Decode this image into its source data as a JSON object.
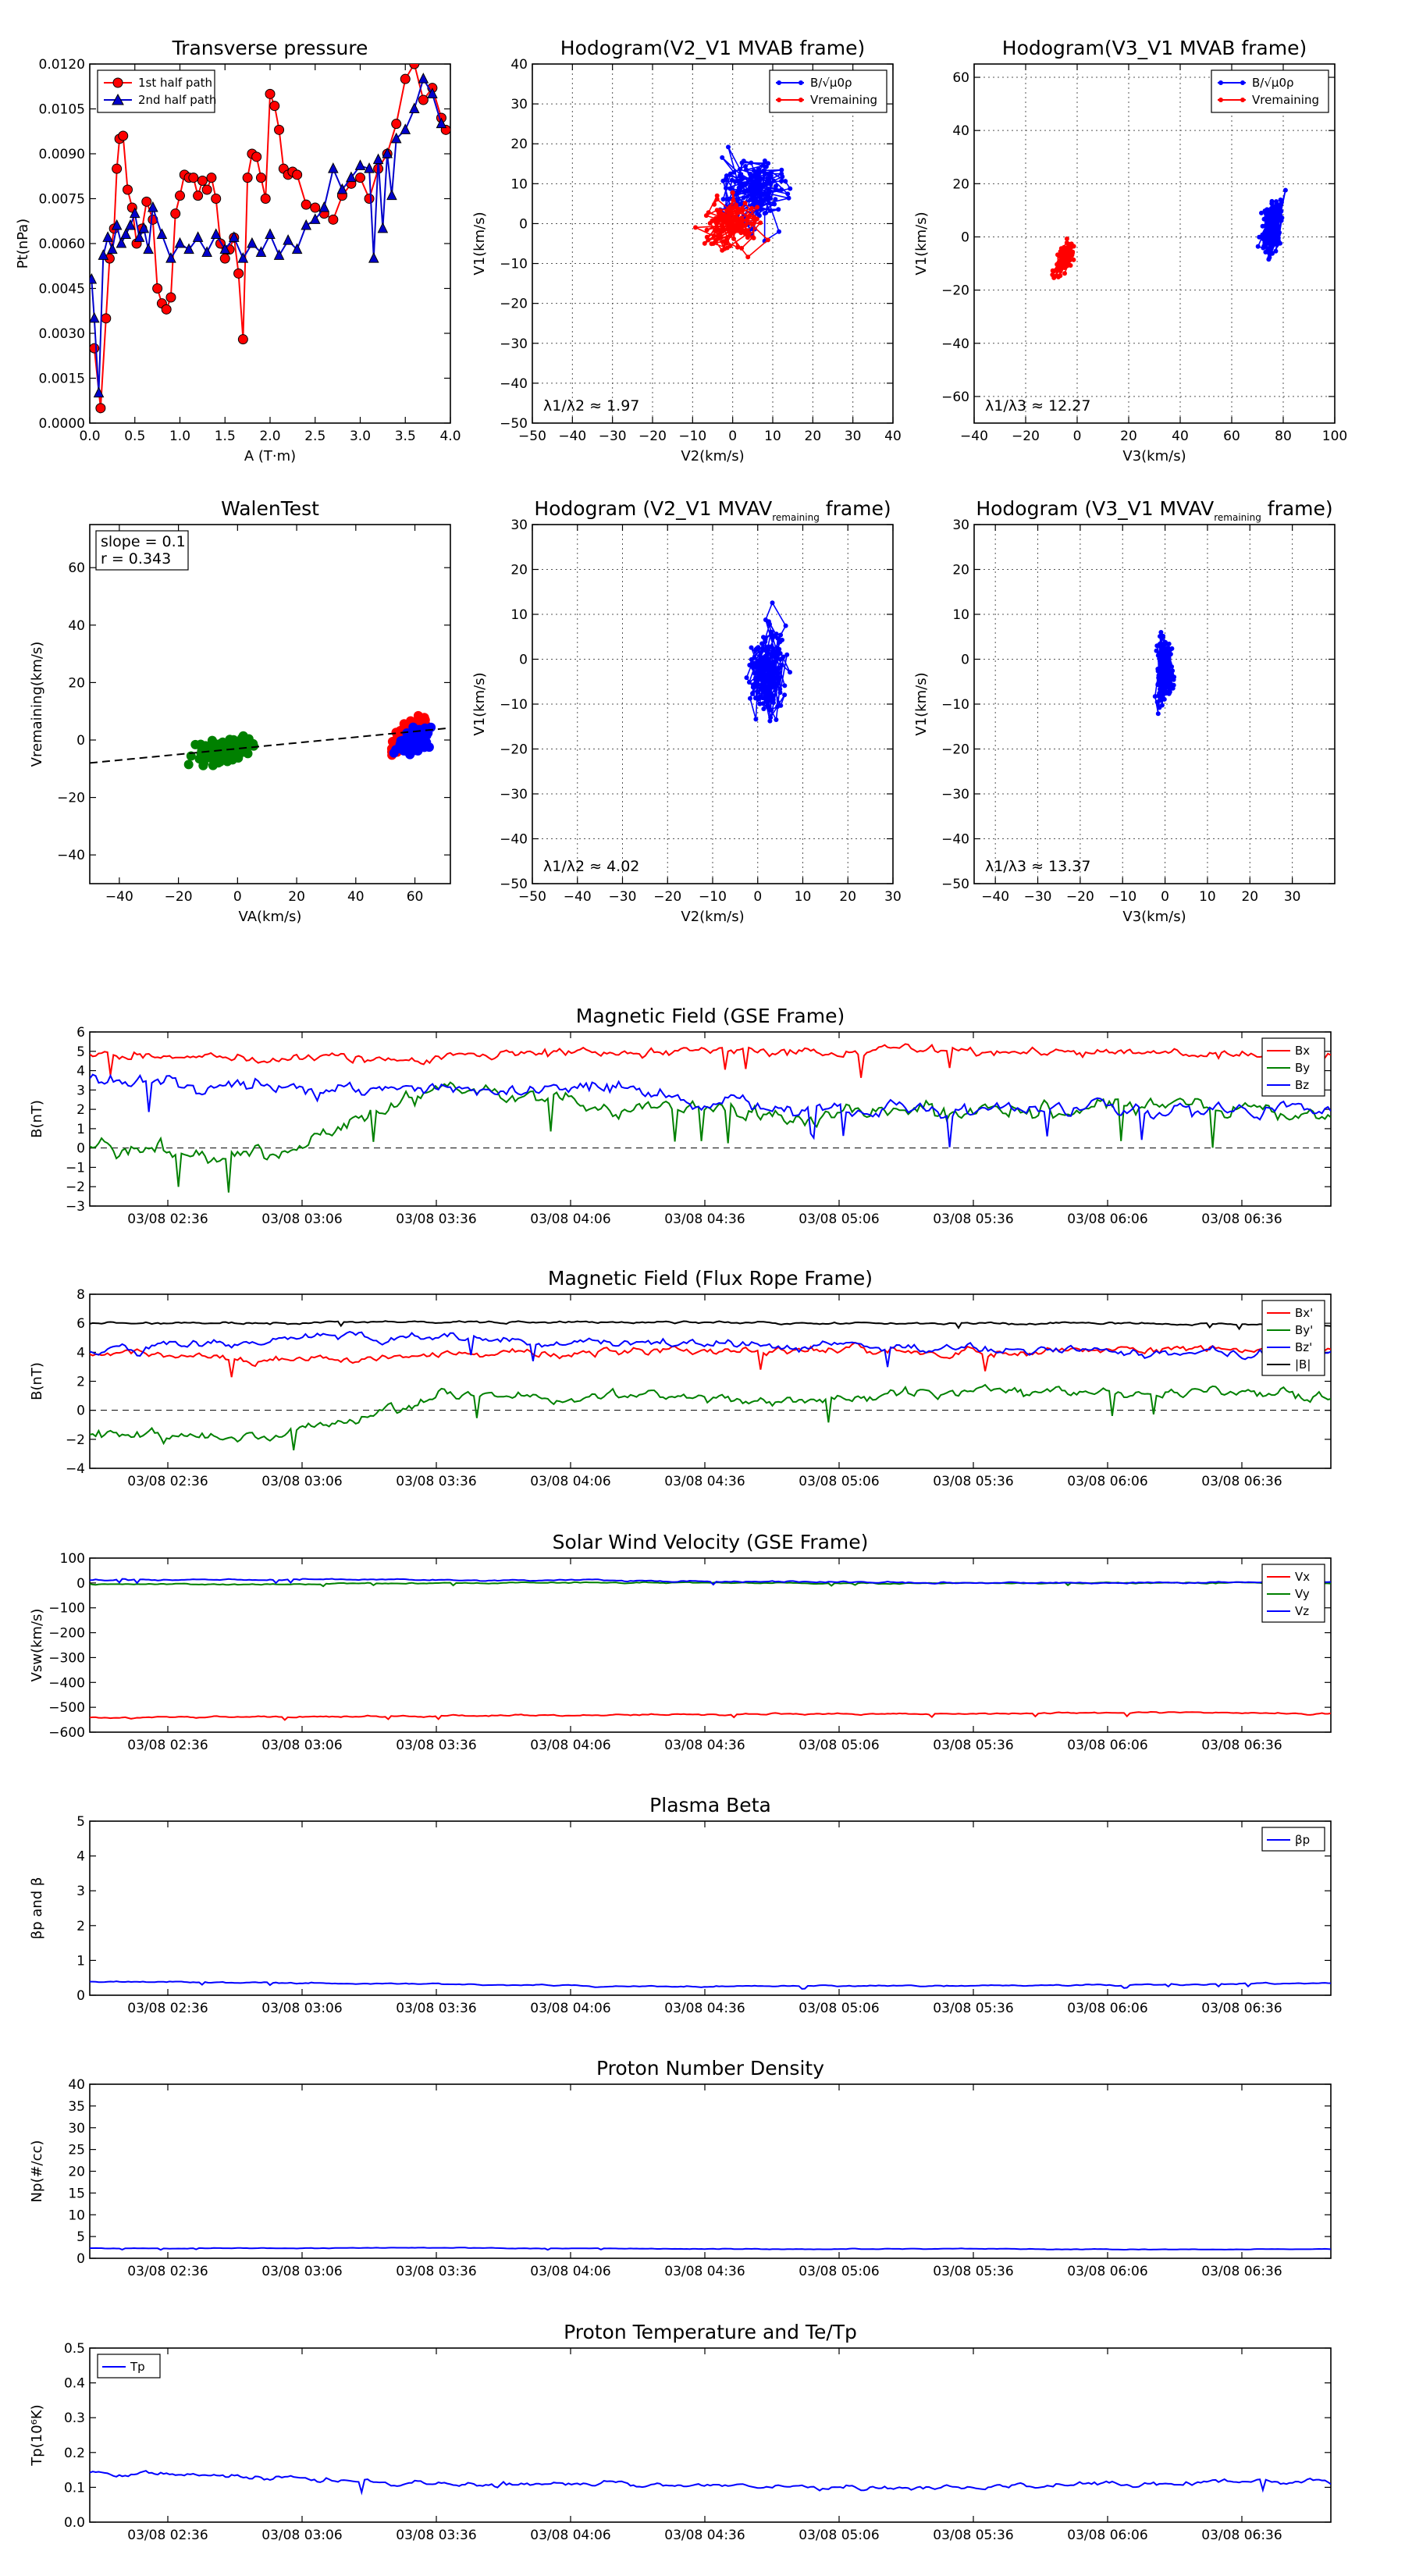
{
  "chart_data": [
    {
      "id": "tp",
      "type": "line",
      "title": "Transverse pressure",
      "xlabel": "A (T·m)",
      "ylabel": "Pt(nPa)",
      "xlim": [
        0.0,
        4.0
      ],
      "ylim": [
        0.0,
        0.012
      ],
      "xticks": [
        "0.0",
        "0.5",
        "1.0",
        "1.5",
        "2.0",
        "2.5",
        "3.0",
        "3.5",
        "4.0"
      ],
      "yticks": [
        "0.0000",
        "0.0015",
        "0.0030",
        "0.0045",
        "0.0060",
        "0.0075",
        "0.0090",
        "0.0105",
        "0.0120"
      ],
      "grid": false,
      "legend": "top-left",
      "series": [
        {
          "name": "1st half path",
          "color": "#ff0000",
          "marker": "circle",
          "x": [
            0.05,
            0.12,
            0.18,
            0.22,
            0.27,
            0.3,
            0.33,
            0.37,
            0.42,
            0.47,
            0.52,
            0.58,
            0.63,
            0.7,
            0.75,
            0.8,
            0.85,
            0.9,
            0.95,
            1.0,
            1.05,
            1.1,
            1.15,
            1.2,
            1.25,
            1.3,
            1.35,
            1.4,
            1.45,
            1.5,
            1.55,
            1.6,
            1.65,
            1.7,
            1.75,
            1.8,
            1.85,
            1.9,
            1.95,
            2.0,
            2.05,
            2.1,
            2.15,
            2.2,
            2.25,
            2.3,
            2.4,
            2.5,
            2.6,
            2.7,
            2.8,
            2.9,
            3.0,
            3.1,
            3.2,
            3.3,
            3.4,
            3.5,
            3.6,
            3.7,
            3.8,
            3.9,
            3.95
          ],
          "y": [
            0.0025,
            0.0005,
            0.0035,
            0.0055,
            0.0065,
            0.0085,
            0.0095,
            0.0096,
            0.0078,
            0.0072,
            0.006,
            0.0065,
            0.0074,
            0.0068,
            0.0045,
            0.004,
            0.0038,
            0.0042,
            0.007,
            0.0076,
            0.0083,
            0.0082,
            0.0082,
            0.0076,
            0.0081,
            0.0078,
            0.0082,
            0.0075,
            0.006,
            0.0055,
            0.0058,
            0.0062,
            0.005,
            0.0028,
            0.0082,
            0.009,
            0.0089,
            0.0082,
            0.0075,
            0.011,
            0.0106,
            0.0098,
            0.0085,
            0.0083,
            0.0084,
            0.0083,
            0.0073,
            0.0072,
            0.007,
            0.0068,
            0.0076,
            0.008,
            0.0082,
            0.0075,
            0.0085,
            0.009,
            0.01,
            0.0115,
            0.012,
            0.0108,
            0.0112,
            0.0102,
            0.0098
          ]
        },
        {
          "name": "2nd half path",
          "color": "#0000cc",
          "marker": "triangle",
          "x": [
            0.02,
            0.05,
            0.1,
            0.15,
            0.2,
            0.25,
            0.3,
            0.35,
            0.4,
            0.45,
            0.5,
            0.55,
            0.6,
            0.65,
            0.7,
            0.8,
            0.9,
            1.0,
            1.1,
            1.2,
            1.3,
            1.4,
            1.5,
            1.6,
            1.7,
            1.8,
            1.9,
            2.0,
            2.1,
            2.2,
            2.3,
            2.4,
            2.5,
            2.6,
            2.7,
            2.8,
            2.9,
            3.0,
            3.1,
            3.15,
            3.2,
            3.25,
            3.3,
            3.35,
            3.4,
            3.5,
            3.6,
            3.7,
            3.8,
            3.9
          ],
          "y": [
            0.0048,
            0.0035,
            0.001,
            0.0056,
            0.0062,
            0.0058,
            0.0066,
            0.006,
            0.0063,
            0.0066,
            0.007,
            0.0062,
            0.0065,
            0.0058,
            0.0072,
            0.0063,
            0.0055,
            0.006,
            0.0058,
            0.0062,
            0.0057,
            0.0063,
            0.0058,
            0.0062,
            0.0055,
            0.006,
            0.0057,
            0.0063,
            0.0056,
            0.0061,
            0.0058,
            0.0066,
            0.0068,
            0.0072,
            0.0085,
            0.0078,
            0.0082,
            0.0086,
            0.0085,
            0.0055,
            0.0088,
            0.0065,
            0.009,
            0.0076,
            0.0095,
            0.0098,
            0.0105,
            0.0115,
            0.011,
            0.01
          ]
        }
      ]
    },
    {
      "id": "h1",
      "type": "line",
      "title": "Hodogram(V2_V1 MVAB frame)",
      "xlabel": "V2(km/s)",
      "ylabel": "V1(km/s)",
      "xlim": [
        -50,
        40
      ],
      "ylim": [
        -50,
        40
      ],
      "xticks": [
        "−50",
        "−40",
        "−30",
        "−20",
        "−10",
        "0",
        "10",
        "20",
        "30",
        "40"
      ],
      "yticks": [
        "−50",
        "−40",
        "−30",
        "−20",
        "−10",
        "0",
        "10",
        "20",
        "30",
        "40"
      ],
      "grid": true,
      "legend": "top-right",
      "annotation": "λ1/λ2 ≈ 1.97",
      "series": [
        {
          "name": "B/√μ0ρ",
          "color": "#0000ff",
          "marker": "dot",
          "cloud": {
            "cx": 5,
            "cy": 8,
            "sx": 12,
            "sy": 14,
            "n": 160,
            "seed": 11
          }
        },
        {
          "name": "Vremaining",
          "color": "#ff0000",
          "marker": "dot",
          "cloud": {
            "cx": 0,
            "cy": 0,
            "sx": 11,
            "sy": 9,
            "n": 130,
            "seed": 23
          }
        }
      ]
    },
    {
      "id": "h2",
      "type": "line",
      "title": "Hodogram(V3_V1 MVAB frame)",
      "xlabel": "V3(km/s)",
      "ylabel": "V1(km/s)",
      "xlim": [
        -40,
        100
      ],
      "ylim": [
        -70,
        65
      ],
      "xticks": [
        "−40",
        "−20",
        "0",
        "20",
        "40",
        "60",
        "80",
        "100"
      ],
      "yticks": [
        "−60",
        "−40",
        "−20",
        "0",
        "20",
        "40",
        "60"
      ],
      "grid": true,
      "legend": "top-right",
      "annotation": "λ1/λ3 ≈ 12.27",
      "series": [
        {
          "name": "B/√μ0ρ",
          "color": "#0000ff",
          "marker": "dot",
          "cloud": {
            "cx": 76,
            "cy": 5,
            "sx": 6,
            "sy": 16,
            "n": 170,
            "seed": 37,
            "tilt": 0.25
          }
        },
        {
          "name": "Vremaining",
          "color": "#ff0000",
          "marker": "dot",
          "cloud": {
            "cx": -5,
            "cy": -8,
            "sx": 5,
            "sy": 10,
            "n": 140,
            "seed": 41,
            "tilt": 0.9
          }
        }
      ]
    },
    {
      "id": "wt",
      "type": "scatter",
      "title": "WalenTest",
      "xlabel": "VA(km/s)",
      "ylabel": "Vremaining(km/s)",
      "xlim": [
        -50,
        72
      ],
      "ylim": [
        -50,
        75
      ],
      "xticks": [
        "−40",
        "−20",
        "0",
        "20",
        "40",
        "60"
      ],
      "yticks": [
        "−40",
        "−20",
        "0",
        "20",
        "40",
        "60"
      ],
      "grid": false,
      "annotation_lines": [
        "slope = 0.1",
        "r = 0.343"
      ],
      "fit": {
        "slope": 0.1,
        "intercept": -3
      },
      "series": [
        {
          "color": "#008000",
          "cloud": {
            "cx": -5,
            "cy": -4,
            "sx": 14,
            "sy": 6,
            "n": 170,
            "seed": 53,
            "tilt": 0.5
          }
        },
        {
          "color": "#ff0000",
          "cloud": {
            "cx": 58,
            "cy": 2,
            "sx": 8,
            "sy": 9,
            "n": 180,
            "seed": 59,
            "tilt": 0.9
          }
        },
        {
          "color": "#0000ff",
          "cloud": {
            "cx": 60,
            "cy": 0,
            "sx": 8,
            "sy": 6,
            "n": 170,
            "seed": 61,
            "tilt": 0.6
          }
        }
      ]
    },
    {
      "id": "h3",
      "type": "line",
      "title": "Hodogram (V2_V1 MVAVremaining frame)",
      "xlabel": "V2(km/s)",
      "ylabel": "V1(km/s)",
      "xlim": [
        -50,
        30
      ],
      "ylim": [
        -50,
        30
      ],
      "xticks": [
        "−50",
        "−40",
        "−30",
        "−20",
        "−10",
        "0",
        "10",
        "20",
        "30"
      ],
      "yticks": [
        "−50",
        "−40",
        "−30",
        "−20",
        "−10",
        "0",
        "10",
        "20",
        "30"
      ],
      "grid": true,
      "annotation": "λ1/λ2 ≈ 4.02",
      "series": [
        {
          "color": "#0000ff",
          "marker": "dot",
          "cloud": {
            "cx": 2,
            "cy": -2,
            "sx": 6,
            "sy": 13,
            "n": 180,
            "seed": 71
          }
        }
      ]
    },
    {
      "id": "h4",
      "type": "line",
      "title": "Hodogram (V3_V1 MVAVremaining frame)",
      "xlabel": "V3(km/s)",
      "ylabel": "V1(km/s)",
      "xlim": [
        -45,
        40
      ],
      "ylim": [
        -50,
        30
      ],
      "xticks": [
        "−40",
        "−30",
        "−20",
        "−10",
        "0",
        "10",
        "20",
        "30"
      ],
      "yticks": [
        "−50",
        "−40",
        "−30",
        "−20",
        "−10",
        "0",
        "10",
        "20",
        "30"
      ],
      "grid": true,
      "annotation": "λ1/λ3 ≈ 13.37",
      "series": [
        {
          "color": "#0000ff",
          "marker": "dot",
          "cloud": {
            "cx": 0,
            "cy": -2,
            "sx": 3,
            "sy": 13,
            "n": 180,
            "seed": 83
          }
        }
      ]
    },
    {
      "id": "mf1",
      "type": "line",
      "title": "Magnetic Field (GSE Frame)",
      "ylabel": "B(nT)",
      "xticks": [
        "03/08 02:36",
        "03/08 03:06",
        "03/08 03:36",
        "03/08 04:06",
        "03/08 04:36",
        "03/08 05:06",
        "03/08 05:36",
        "03/08 06:06",
        "03/08 06:36"
      ],
      "ylim": [
        -3,
        6
      ],
      "yticks": [
        "−3",
        "−2",
        "−1",
        "0",
        "1",
        "2",
        "3",
        "4",
        "5",
        "6"
      ],
      "zero_line": true,
      "legend": "top-right",
      "series": [
        {
          "name": "Bx",
          "color": "#ff0000",
          "base": [
            5.0,
            4.6,
            4.8,
            4.9,
            5.0,
            4.9,
            5.0,
            4.8
          ],
          "noise": 0.35,
          "seed": 3
        },
        {
          "name": "By",
          "color": "#008000",
          "base": [
            0.0,
            -0.5,
            3.2,
            2.0,
            1.8,
            2.0,
            2.2,
            1.8
          ],
          "noise": 0.6,
          "seed": 5
        },
        {
          "name": "Bz",
          "color": "#0000ff",
          "base": [
            3.5,
            3.0,
            3.0,
            3.2,
            2.0,
            2.0,
            1.8,
            2.0
          ],
          "noise": 0.5,
          "seed": 7
        }
      ]
    },
    {
      "id": "mf2",
      "type": "line",
      "title": "Magnetic Field (Flux Rope Frame)",
      "ylabel": "B(nT)",
      "xticks": [
        "03/08 02:36",
        "03/08 03:06",
        "03/08 03:36",
        "03/08 04:06",
        "03/08 04:36",
        "03/08 05:06",
        "03/08 05:36",
        "03/08 06:06",
        "03/08 06:36"
      ],
      "ylim": [
        -4,
        8
      ],
      "yticks": [
        "−4",
        "−2",
        "0",
        "2",
        "4",
        "6",
        "8"
      ],
      "zero_line": true,
      "legend": "top-right",
      "series": [
        {
          "name": "Bx'",
          "color": "#ff0000",
          "base": [
            4.0,
            3.5,
            3.8,
            4.0,
            4.2,
            4.0,
            4.2,
            4.1
          ],
          "noise": 0.4,
          "seed": 13
        },
        {
          "name": "By'",
          "color": "#008000",
          "base": [
            -1.5,
            -2.0,
            1.0,
            1.0,
            0.5,
            1.5,
            1.2,
            1.0
          ],
          "noise": 0.5,
          "seed": 17
        },
        {
          "name": "Bz'",
          "color": "#0000ff",
          "base": [
            4.0,
            5.0,
            5.0,
            4.6,
            4.4,
            4.2,
            4.0,
            3.8
          ],
          "noise": 0.4,
          "seed": 19
        },
        {
          "name": "|B|",
          "color": "#000000",
          "base": [
            6.0,
            6.0,
            6.1,
            6.1,
            6.0,
            6.0,
            6.0,
            5.8
          ],
          "noise": 0.1,
          "seed": 29
        }
      ]
    },
    {
      "id": "sw",
      "type": "line",
      "title": "Solar Wind Velocity (GSE Frame)",
      "ylabel": "Vsw(km/s)",
      "xticks": [
        "03/08 02:36",
        "03/08 03:06",
        "03/08 03:36",
        "03/08 04:06",
        "03/08 04:36",
        "03/08 05:06",
        "03/08 05:36",
        "03/08 06:06",
        "03/08 06:36"
      ],
      "ylim": [
        -600,
        100
      ],
      "yticks": [
        "−600",
        "−500",
        "−400",
        "−300",
        "−200",
        "−100",
        "0",
        "100"
      ],
      "legend": "top-right",
      "series": [
        {
          "name": "Vx",
          "color": "#ff0000",
          "base": [
            -540,
            -540,
            -535,
            -530,
            -528,
            -525,
            -520,
            -525
          ],
          "noise": 4,
          "seed": 31
        },
        {
          "name": "Vy",
          "color": "#008000",
          "base": [
            -5,
            -5,
            0,
            2,
            0,
            -2,
            0,
            0
          ],
          "noise": 3,
          "seed": 37
        },
        {
          "name": "Vz",
          "color": "#0000ff",
          "base": [
            10,
            15,
            12,
            10,
            5,
            0,
            0,
            5
          ],
          "noise": 4,
          "seed": 43
        }
      ]
    },
    {
      "id": "pb",
      "type": "line",
      "title": "Plasma Beta",
      "ylabel": "βp and β",
      "xticks": [
        "03/08 02:36",
        "03/08 03:06",
        "03/08 03:36",
        "03/08 04:06",
        "03/08 04:36",
        "03/08 05:06",
        "03/08 05:36",
        "03/08 06:06",
        "03/08 06:36"
      ],
      "ylim": [
        0,
        5
      ],
      "yticks": [
        "0",
        "1",
        "2",
        "3",
        "4",
        "5"
      ],
      "legend": "top-right",
      "series": [
        {
          "name": "βp",
          "color": "#0000ff",
          "base": [
            0.4,
            0.35,
            0.32,
            0.25,
            0.27,
            0.28,
            0.3,
            0.35
          ],
          "noise": 0.025,
          "seed": 47
        }
      ]
    },
    {
      "id": "np",
      "type": "line",
      "title": "Proton Number Density",
      "ylabel": "Np(#/cc)",
      "xticks": [
        "03/08 02:36",
        "03/08 03:06",
        "03/08 03:36",
        "03/08 04:06",
        "03/08 04:36",
        "03/08 05:06",
        "03/08 05:36",
        "03/08 06:06",
        "03/08 06:36"
      ],
      "ylim": [
        0,
        40
      ],
      "yticks": [
        "0",
        "5",
        "10",
        "15",
        "20",
        "25",
        "30",
        "35",
        "40"
      ],
      "series": [
        {
          "name": "Np",
          "color": "#0000ff",
          "base": [
            2.3,
            2.3,
            2.4,
            2.2,
            2.1,
            2.2,
            2.0,
            2.1
          ],
          "noise": 0.1,
          "seed": 53
        }
      ]
    },
    {
      "id": "tpp",
      "type": "line",
      "title": "Proton Temperature and Te/Tp",
      "ylabel": "Tp(10⁶K)",
      "xticks": [
        "03/08 02:36",
        "03/08 03:06",
        "03/08 03:36",
        "03/08 04:06",
        "03/08 04:36",
        "03/08 05:06",
        "03/08 05:36",
        "03/08 06:06",
        "03/08 06:36"
      ],
      "ylim": [
        0,
        0.5
      ],
      "yticks": [
        "0.0",
        "0.1",
        "0.2",
        "0.3",
        "0.4",
        "0.5"
      ],
      "legend": "top-left",
      "series": [
        {
          "name": "Tp",
          "color": "#0000ff",
          "base": [
            0.14,
            0.13,
            0.11,
            0.11,
            0.1,
            0.1,
            0.11,
            0.12
          ],
          "noise": 0.01,
          "seed": 59
        }
      ]
    }
  ]
}
